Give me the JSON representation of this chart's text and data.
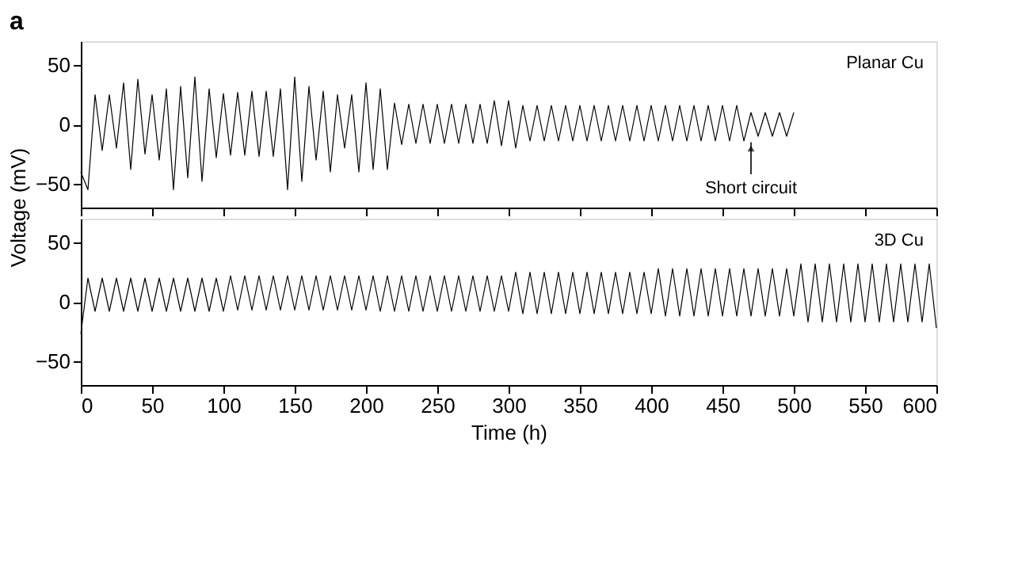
{
  "chart_data": [
    {
      "type": "line",
      "ylabel": "Voltage (mV)",
      "annotations": [
        "a",
        {
          "text": "Short circuit",
          "x": 470,
          "y": -15
        }
      ],
      "xlim": [
        0,
        600
      ],
      "xticks": [
        0,
        50,
        100,
        150,
        200,
        250,
        300,
        350,
        400,
        450,
        500,
        550,
        600
      ],
      "ylim": [
        -70,
        70
      ],
      "yticks": [
        -50,
        0,
        50
      ],
      "tick_labels": "y",
      "grid": false,
      "series": [
        {
          "name": "Planar Cu",
          "color": "#000000",
          "x": [
            0,
            5,
            10,
            15,
            20,
            25,
            30,
            35,
            40,
            45,
            50,
            55,
            60,
            65,
            70,
            75,
            80,
            85,
            90,
            95,
            100,
            105,
            110,
            115,
            120,
            125,
            130,
            135,
            140,
            145,
            150,
            155,
            160,
            165,
            170,
            175,
            180,
            185,
            190,
            195,
            200,
            205,
            210,
            215,
            220,
            225,
            230,
            235,
            240,
            245,
            250,
            255,
            260,
            265,
            270,
            275,
            280,
            285,
            290,
            295,
            300,
            305,
            310,
            315,
            320,
            325,
            330,
            335,
            340,
            345,
            350,
            355,
            360,
            365,
            370,
            375,
            380,
            385,
            390,
            395,
            400,
            405,
            410,
            415,
            420,
            425,
            430,
            435,
            440,
            445,
            450,
            455,
            460,
            465,
            470,
            475,
            480,
            485,
            490,
            495,
            500
          ],
          "values": [
            -40,
            -55,
            25,
            -22,
            25,
            -20,
            35,
            -38,
            38,
            -25,
            25,
            -30,
            30,
            -55,
            32,
            -45,
            40,
            -48,
            30,
            -28,
            26,
            -26,
            27,
            -26,
            28,
            -27,
            28,
            -27,
            30,
            -55,
            40,
            -48,
            32,
            -30,
            28,
            -40,
            25,
            -20,
            25,
            -40,
            35,
            -38,
            30,
            -38,
            18,
            -17,
            17,
            -16,
            17,
            -16,
            17,
            -16,
            17,
            -16,
            17,
            -16,
            17,
            -16,
            20,
            -18,
            20,
            -20,
            16,
            -14,
            16,
            -14,
            16,
            -14,
            16,
            -14,
            16,
            -14,
            16,
            -14,
            16,
            -14,
            16,
            -14,
            16,
            -14,
            16,
            -14,
            16,
            -14,
            16,
            -14,
            16,
            -14,
            16,
            -14,
            16,
            -14,
            16,
            -14,
            10,
            -10,
            10,
            -10,
            10,
            -10,
            10
          ]
        }
      ]
    },
    {
      "type": "line",
      "xlabel": "Time (h)",
      "xlim": [
        0,
        600
      ],
      "xticks": [
        0,
        50,
        100,
        150,
        200,
        250,
        300,
        350,
        400,
        450,
        500,
        550,
        600
      ],
      "ylim": [
        -70,
        70
      ],
      "yticks": [
        -50,
        0,
        50
      ],
      "grid": false,
      "series": [
        {
          "name": "3D Cu",
          "color": "#000000",
          "x": [
            0,
            5,
            10,
            15,
            20,
            25,
            30,
            35,
            40,
            45,
            50,
            55,
            60,
            65,
            70,
            75,
            80,
            85,
            90,
            95,
            100,
            105,
            110,
            115,
            120,
            125,
            130,
            135,
            140,
            145,
            150,
            155,
            160,
            165,
            170,
            175,
            180,
            185,
            190,
            195,
            200,
            205,
            210,
            215,
            220,
            225,
            230,
            235,
            240,
            245,
            250,
            255,
            260,
            265,
            270,
            275,
            280,
            285,
            290,
            295,
            300,
            305,
            310,
            315,
            320,
            325,
            330,
            335,
            340,
            345,
            350,
            355,
            360,
            365,
            370,
            375,
            380,
            385,
            390,
            395,
            400,
            405,
            410,
            415,
            420,
            425,
            430,
            435,
            440,
            445,
            450,
            455,
            460,
            465,
            470,
            475,
            480,
            485,
            490,
            495,
            500,
            505,
            510,
            515,
            520,
            525,
            530,
            535,
            540,
            545,
            550,
            555,
            560,
            565,
            570,
            575,
            580,
            585,
            590,
            595,
            600
          ],
          "values": [
            -27,
            20,
            -8,
            20,
            -8,
            20,
            -8,
            20,
            -8,
            20,
            -8,
            20,
            -8,
            20,
            -8,
            20,
            -8,
            20,
            -8,
            20,
            -8,
            22,
            -7,
            22,
            -7,
            22,
            -7,
            22,
            -7,
            22,
            -7,
            22,
            -7,
            22,
            -7,
            22,
            -7,
            22,
            -7,
            22,
            -7,
            22,
            -8,
            22,
            -8,
            22,
            -8,
            22,
            -8,
            22,
            -8,
            22,
            -8,
            22,
            -8,
            22,
            -8,
            22,
            -8,
            22,
            -8,
            25,
            -10,
            25,
            -10,
            25,
            -10,
            25,
            -10,
            25,
            -10,
            25,
            -10,
            25,
            -10,
            25,
            -10,
            25,
            -10,
            25,
            -10,
            28,
            -12,
            28,
            -12,
            28,
            -12,
            28,
            -12,
            28,
            -12,
            28,
            -12,
            28,
            -12,
            28,
            -12,
            28,
            -12,
            28,
            -12,
            32,
            -17,
            32,
            -17,
            32,
            -17,
            32,
            -17,
            32,
            -17,
            32,
            -17,
            32,
            -17,
            32,
            -17,
            32,
            -17,
            32,
            -22
          ]
        }
      ]
    }
  ]
}
